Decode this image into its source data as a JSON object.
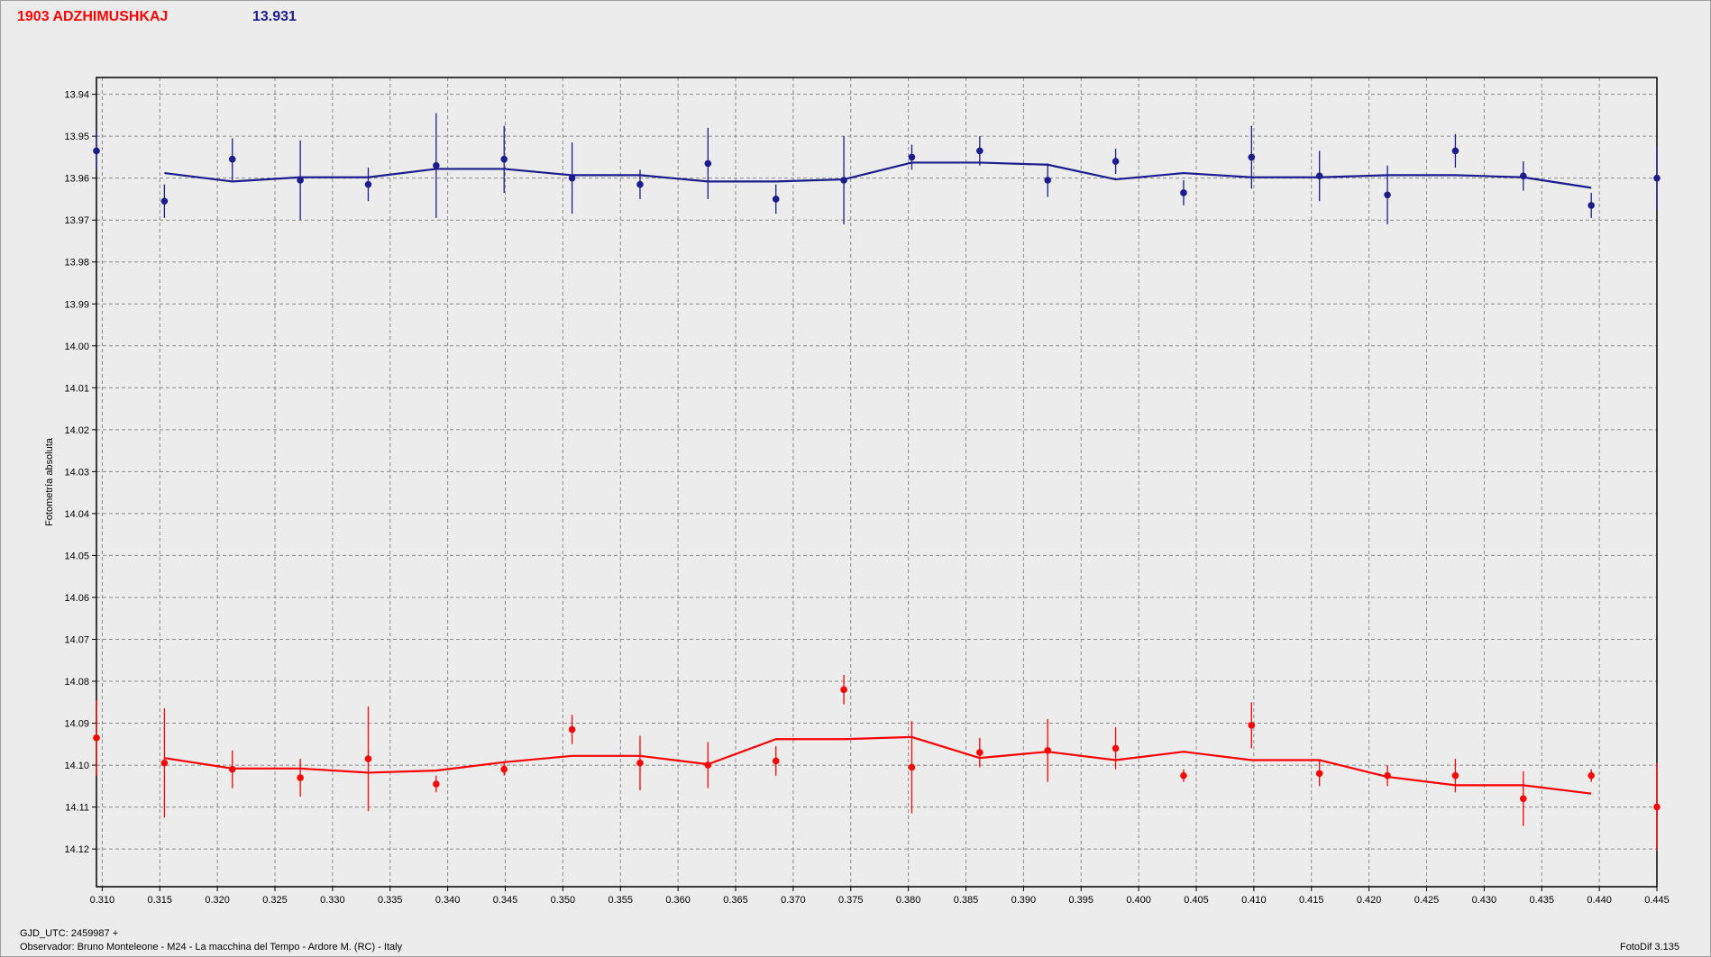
{
  "header": {
    "object_name": "1903 ADZHIMUSHKAJ",
    "reference_mag": "13.931"
  },
  "footer": {
    "gjd": "GJD_UTC: 2459987 +",
    "observer": "Observador: Bruno Monteleone - M24 - La macchina del Tempo - Ardore M. (RC) - Italy",
    "software": "FotoDif 3.135"
  },
  "chart_data": {
    "type": "scatter",
    "title": "",
    "xlabel": "",
    "ylabel": "Fotometría absoluta",
    "xlim": [
      0.3095,
      0.445
    ],
    "ylim": [
      13.936,
      14.129
    ],
    "y_inverted": true,
    "grid": true,
    "x_ticks": [
      "0.310",
      "0.315",
      "0.320",
      "0.325",
      "0.330",
      "0.335",
      "0.340",
      "0.345",
      "0.350",
      "0.355",
      "0.360",
      "0.365",
      "0.370",
      "0.375",
      "0.380",
      "0.385",
      "0.390",
      "0.395",
      "0.400",
      "0.405",
      "0.410",
      "0.415",
      "0.420",
      "0.425",
      "0.430",
      "0.435",
      "0.440",
      "0.445"
    ],
    "y_ticks": [
      "13.94",
      "13.95",
      "13.96",
      "13.97",
      "13.98",
      "13.99",
      "14.00",
      "14.01",
      "14.02",
      "14.03",
      "14.04",
      "14.05",
      "14.06",
      "14.07",
      "14.08",
      "14.09",
      "14.10",
      "14.11",
      "14.12"
    ],
    "series": [
      {
        "color": "#1c1c8c",
        "points": [
          {
            "x": 0.3095,
            "y": 13.9535,
            "err": 0.0045
          },
          {
            "x": 0.3154,
            "y": 13.9655,
            "err": 0.004
          },
          {
            "x": 0.3213,
            "y": 13.9555,
            "err": 0.005
          },
          {
            "x": 0.3272,
            "y": 13.9605,
            "err": 0.0095
          },
          {
            "x": 0.3331,
            "y": 13.9615,
            "err": 0.004
          },
          {
            "x": 0.339,
            "y": 13.957,
            "err": 0.0125
          },
          {
            "x": 0.3449,
            "y": 13.9555,
            "err": 0.008
          },
          {
            "x": 0.3508,
            "y": 13.96,
            "err": 0.0085
          },
          {
            "x": 0.3567,
            "y": 13.9615,
            "err": 0.0035
          },
          {
            "x": 0.3626,
            "y": 13.9565,
            "err": 0.0085
          },
          {
            "x": 0.3685,
            "y": 13.965,
            "err": 0.0035
          },
          {
            "x": 0.3744,
            "y": 13.9605,
            "err": 0.0105
          },
          {
            "x": 0.3803,
            "y": 13.955,
            "err": 0.003
          },
          {
            "x": 0.3862,
            "y": 13.9535,
            "err": 0.0035
          },
          {
            "x": 0.3921,
            "y": 13.9605,
            "err": 0.004
          },
          {
            "x": 0.398,
            "y": 13.956,
            "err": 0.003
          },
          {
            "x": 0.4039,
            "y": 13.9635,
            "err": 0.003
          },
          {
            "x": 0.4098,
            "y": 13.955,
            "err": 0.0075
          },
          {
            "x": 0.4157,
            "y": 13.9595,
            "err": 0.006
          },
          {
            "x": 0.4216,
            "y": 13.964,
            "err": 0.007
          },
          {
            "x": 0.4275,
            "y": 13.9535,
            "err": 0.004
          },
          {
            "x": 0.4334,
            "y": 13.9595,
            "err": 0.0035
          },
          {
            "x": 0.4393,
            "y": 13.9665,
            "err": 0.003
          },
          {
            "x": 0.445,
            "y": 13.96,
            "err": 0.0075
          }
        ],
        "fit_x": [
          0.3154,
          0.3213,
          0.3272,
          0.3331,
          0.339,
          0.3449,
          0.3508,
          0.3567,
          0.3626,
          0.3685,
          0.3744,
          0.3803,
          0.3862,
          0.3921,
          0.398,
          0.4039,
          0.4098,
          0.4157,
          0.4216,
          0.4275,
          0.4334,
          0.4393
        ],
        "fit_y": [
          13.9588,
          13.9608,
          13.9598,
          13.9598,
          13.9578,
          13.9578,
          13.9593,
          13.9593,
          13.9608,
          13.9608,
          13.9603,
          13.9563,
          13.9563,
          13.9568,
          13.9603,
          13.9588,
          13.9598,
          13.9598,
          13.9593,
          13.9593,
          13.9598,
          13.9623
        ]
      },
      {
        "color": "#ff0000",
        "points": [
          {
            "x": 0.3095,
            "y": 14.0935,
            "err": 0.009
          },
          {
            "x": 0.3154,
            "y": 14.0995,
            "err": 0.013
          },
          {
            "x": 0.3213,
            "y": 14.101,
            "err": 0.0045
          },
          {
            "x": 0.3272,
            "y": 14.103,
            "err": 0.0045
          },
          {
            "x": 0.3331,
            "y": 14.0985,
            "err": 0.0125
          },
          {
            "x": 0.339,
            "y": 14.1045,
            "err": 0.002
          },
          {
            "x": 0.3449,
            "y": 14.101,
            "err": 0.0015
          },
          {
            "x": 0.3508,
            "y": 14.0915,
            "err": 0.0035
          },
          {
            "x": 0.3567,
            "y": 14.0995,
            "err": 0.0065
          },
          {
            "x": 0.3626,
            "y": 14.1,
            "err": 0.0055
          },
          {
            "x": 0.3685,
            "y": 14.099,
            "err": 0.0035
          },
          {
            "x": 0.3744,
            "y": 14.082,
            "err": 0.0035
          },
          {
            "x": 0.3803,
            "y": 14.1005,
            "err": 0.011
          },
          {
            "x": 0.3862,
            "y": 14.097,
            "err": 0.0035
          },
          {
            "x": 0.3921,
            "y": 14.0965,
            "err": 0.0075
          },
          {
            "x": 0.398,
            "y": 14.096,
            "err": 0.005
          },
          {
            "x": 0.4039,
            "y": 14.1025,
            "err": 0.0015
          },
          {
            "x": 0.4098,
            "y": 14.0905,
            "err": 0.0055
          },
          {
            "x": 0.4157,
            "y": 14.102,
            "err": 0.003
          },
          {
            "x": 0.4216,
            "y": 14.1025,
            "err": 0.0025
          },
          {
            "x": 0.4275,
            "y": 14.1025,
            "err": 0.004
          },
          {
            "x": 0.4334,
            "y": 14.108,
            "err": 0.0065
          },
          {
            "x": 0.4393,
            "y": 14.1025,
            "err": 0.0015
          },
          {
            "x": 0.445,
            "y": 14.11,
            "err": 0.0105
          }
        ],
        "fit_x": [
          0.3154,
          0.3213,
          0.3272,
          0.3331,
          0.339,
          0.3449,
          0.3508,
          0.3567,
          0.3626,
          0.3685,
          0.3744,
          0.3803,
          0.3862,
          0.3921,
          0.398,
          0.4039,
          0.4098,
          0.4157,
          0.4216,
          0.4275,
          0.4334,
          0.4393
        ],
        "fit_y": [
          14.0983,
          14.1008,
          14.1008,
          14.1018,
          14.1013,
          14.0993,
          14.0978,
          14.0978,
          14.0998,
          14.0938,
          14.0938,
          14.0933,
          14.0983,
          14.0968,
          14.0988,
          14.0968,
          14.0988,
          14.0988,
          14.1028,
          14.1048,
          14.1048,
          14.1068
        ]
      }
    ]
  }
}
